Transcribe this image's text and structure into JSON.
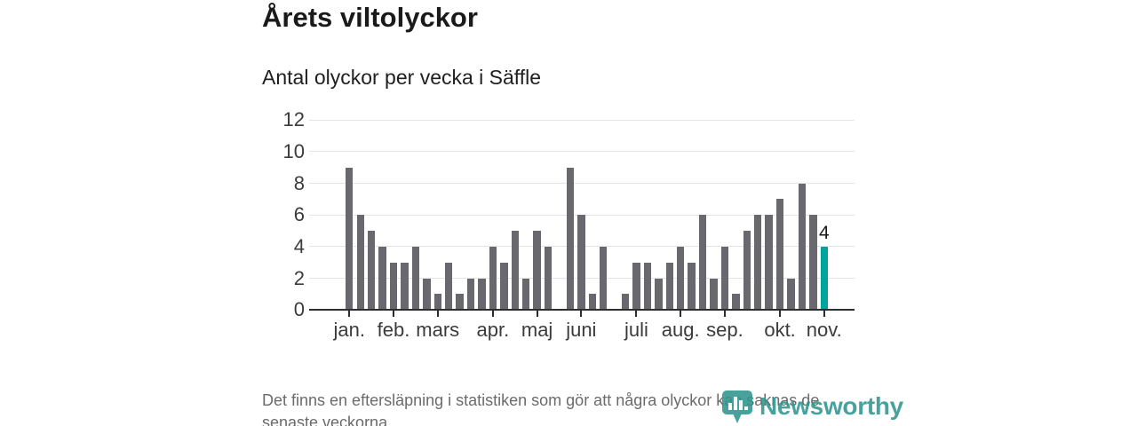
{
  "header": {
    "title": "Årets viltolyckor",
    "subtitle": "Antal olyckor per vecka i Säffle"
  },
  "chart_data": {
    "type": "bar",
    "title": "Årets viltolyckor",
    "subtitle": "Antal olyckor per vecka i Säffle",
    "x_unit": "vecka",
    "x": [
      1,
      2,
      3,
      4,
      5,
      6,
      7,
      8,
      9,
      10,
      11,
      12,
      13,
      14,
      15,
      16,
      17,
      18,
      19,
      20,
      21,
      22,
      23,
      24,
      25,
      26,
      27,
      28,
      29,
      30,
      31,
      32,
      33,
      34,
      35,
      36,
      37,
      38,
      39,
      40,
      41,
      42,
      43,
      44
    ],
    "values": [
      9,
      6,
      5,
      4,
      3,
      3,
      4,
      2,
      1,
      3,
      1,
      2,
      2,
      4,
      3,
      5,
      2,
      5,
      4,
      0,
      9,
      6,
      1,
      4,
      0,
      1,
      3,
      3,
      2,
      3,
      4,
      3,
      6,
      2,
      4,
      1,
      5,
      6,
      6,
      7,
      2,
      8,
      6,
      4
    ],
    "ylim": [
      0,
      12
    ],
    "y_ticks": [
      0,
      2,
      4,
      6,
      8,
      10,
      12
    ],
    "grid": true,
    "legend": "none",
    "month_ticks": [
      {
        "week": 1,
        "label": "jan."
      },
      {
        "week": 5,
        "label": "feb."
      },
      {
        "week": 9,
        "label": "mars"
      },
      {
        "week": 14,
        "label": "apr."
      },
      {
        "week": 18,
        "label": "maj"
      },
      {
        "week": 22,
        "label": "juni"
      },
      {
        "week": 27,
        "label": "juli"
      },
      {
        "week": 31,
        "label": "aug."
      },
      {
        "week": 35,
        "label": "sep."
      },
      {
        "week": 40,
        "label": "okt."
      },
      {
        "week": 44,
        "label": "nov."
      }
    ],
    "highlight": {
      "week": 44,
      "value": 4,
      "label": "4"
    },
    "bar_color": "#68686e",
    "highlight_color": "#00a49c"
  },
  "footer": {
    "note": "Det finns en eftersläpning i statistiken som gör att några olyckor kan saknas de senaste veckorna."
  },
  "logo": {
    "text": "Newsworthy",
    "color": "#2f968e"
  }
}
